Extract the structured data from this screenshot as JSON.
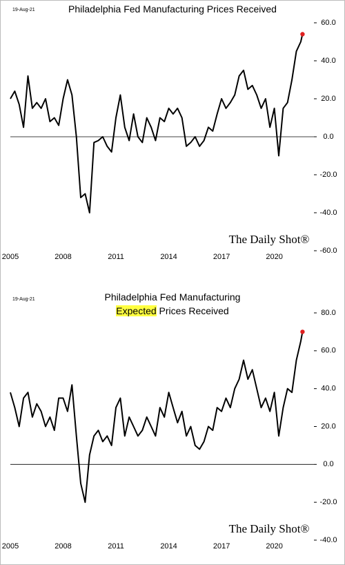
{
  "chart_data": [
    {
      "type": "line",
      "title": "Philadelphia Fed Manufacturing Prices Received",
      "date_label": "19-Aug-21",
      "watermark": "The Daily Shot®",
      "x": [
        2005.0,
        2005.25,
        2005.5,
        2005.75,
        2006.0,
        2006.25,
        2006.5,
        2006.75,
        2007.0,
        2007.25,
        2007.5,
        2007.75,
        2008.0,
        2008.25,
        2008.5,
        2008.75,
        2009.0,
        2009.25,
        2009.5,
        2009.75,
        2010.0,
        2010.25,
        2010.5,
        2010.75,
        2011.0,
        2011.25,
        2011.5,
        2011.75,
        2012.0,
        2012.25,
        2012.5,
        2012.75,
        2013.0,
        2013.25,
        2013.5,
        2013.75,
        2014.0,
        2014.25,
        2014.5,
        2014.75,
        2015.0,
        2015.25,
        2015.5,
        2015.75,
        2016.0,
        2016.25,
        2016.5,
        2016.75,
        2017.0,
        2017.25,
        2017.5,
        2017.75,
        2018.0,
        2018.25,
        2018.5,
        2018.75,
        2019.0,
        2019.25,
        2019.5,
        2019.75,
        2020.0,
        2020.25,
        2020.5,
        2020.75,
        2021.0,
        2021.25,
        2021.5,
        2021.6
      ],
      "series": [
        {
          "color": "#000000",
          "values": [
            20,
            24,
            17,
            5,
            32,
            15,
            18,
            15,
            20,
            8,
            10,
            6,
            20,
            30,
            22,
            0,
            -32,
            -30,
            -40,
            -3,
            -2,
            0,
            -5,
            -8,
            10,
            22,
            5,
            -2,
            12,
            0,
            -3,
            10,
            5,
            -2,
            10,
            8,
            15,
            12,
            15,
            10,
            -5,
            -3,
            0,
            -5,
            -2,
            5,
            3,
            12,
            20,
            15,
            18,
            22,
            32,
            35,
            25,
            27,
            22,
            15,
            20,
            5,
            15,
            -10,
            15,
            18,
            30,
            45,
            50,
            54
          ]
        }
      ],
      "last_point_color": "#e02020",
      "hline": 0,
      "xlim": [
        2005,
        2022.25
      ],
      "xticks": [
        2005,
        2008,
        2011,
        2014,
        2017,
        2020
      ],
      "ylim": [
        -60,
        60
      ],
      "yticks": [
        {
          "value": 60,
          "label": "60.0"
        },
        {
          "value": 40,
          "label": "40.0"
        },
        {
          "value": 20,
          "label": "20.0"
        },
        {
          "value": 0,
          "label": "0.0"
        },
        {
          "value": -20,
          "label": "-20.0"
        },
        {
          "value": -40,
          "label": "-40.0"
        },
        {
          "value": -60,
          "label": "-60.0"
        }
      ]
    },
    {
      "type": "line",
      "title": "Philadelphia Fed Manufacturing",
      "title_highlight": "Expected",
      "title_rest": "Prices Received",
      "date_label": "19-Aug-21",
      "watermark": "The Daily Shot®",
      "x": [
        2005.0,
        2005.25,
        2005.5,
        2005.75,
        2006.0,
        2006.25,
        2006.5,
        2006.75,
        2007.0,
        2007.25,
        2007.5,
        2007.75,
        2008.0,
        2008.25,
        2008.5,
        2008.75,
        2009.0,
        2009.25,
        2009.5,
        2009.75,
        2010.0,
        2010.25,
        2010.5,
        2010.75,
        2011.0,
        2011.25,
        2011.5,
        2011.75,
        2012.0,
        2012.25,
        2012.5,
        2012.75,
        2013.0,
        2013.25,
        2013.5,
        2013.75,
        2014.0,
        2014.25,
        2014.5,
        2014.75,
        2015.0,
        2015.25,
        2015.5,
        2015.75,
        2016.0,
        2016.25,
        2016.5,
        2016.75,
        2017.0,
        2017.25,
        2017.5,
        2017.75,
        2018.0,
        2018.25,
        2018.5,
        2018.75,
        2019.0,
        2019.25,
        2019.5,
        2019.75,
        2020.0,
        2020.25,
        2020.5,
        2020.75,
        2021.0,
        2021.25,
        2021.5,
        2021.6
      ],
      "series": [
        {
          "color": "#000000",
          "values": [
            38,
            30,
            20,
            35,
            38,
            25,
            32,
            28,
            20,
            25,
            18,
            35,
            35,
            28,
            42,
            15,
            -10,
            -20,
            5,
            15,
            18,
            12,
            15,
            10,
            30,
            35,
            15,
            25,
            20,
            15,
            18,
            25,
            20,
            15,
            30,
            25,
            38,
            30,
            22,
            28,
            15,
            20,
            10,
            8,
            12,
            20,
            18,
            30,
            28,
            35,
            30,
            40,
            45,
            55,
            45,
            50,
            40,
            30,
            35,
            28,
            38,
            15,
            30,
            40,
            38,
            55,
            65,
            70
          ]
        }
      ],
      "last_point_color": "#e02020",
      "hline": 0,
      "xlim": [
        2005,
        2022.25
      ],
      "xticks": [
        2005,
        2008,
        2011,
        2014,
        2017,
        2020
      ],
      "ylim": [
        -40,
        80
      ],
      "yticks": [
        {
          "value": 80,
          "label": "80.0"
        },
        {
          "value": 60,
          "label": "60.0"
        },
        {
          "value": 40,
          "label": "40.0"
        },
        {
          "value": 20,
          "label": "20.0"
        },
        {
          "value": 0,
          "label": "0.0"
        },
        {
          "value": -20,
          "label": "-20.0"
        },
        {
          "value": -40,
          "label": "-40.0"
        }
      ]
    }
  ]
}
